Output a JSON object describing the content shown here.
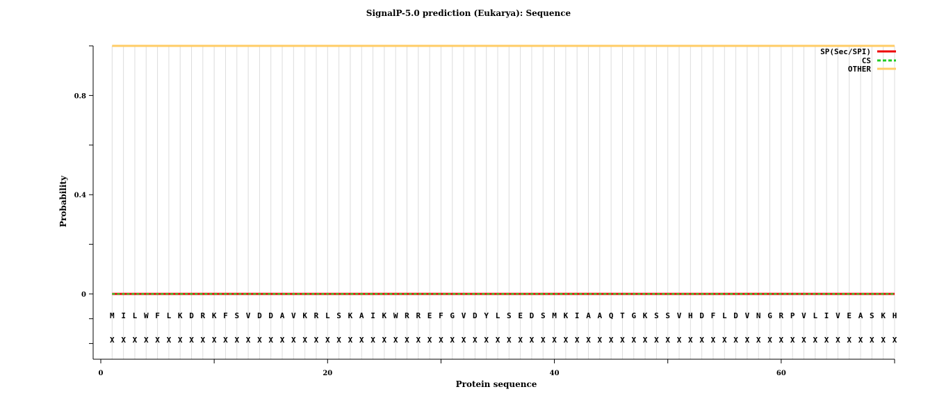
{
  "chart_data": {
    "type": "line",
    "title": "SignalP-5.0 prediction (Eukarya):  Sequence",
    "xlabel": "Protein sequence",
    "ylabel": "Probability",
    "xlim": [
      0,
      70
    ],
    "ylim": [
      0,
      1
    ],
    "x_ticks": [
      0,
      20,
      40,
      60
    ],
    "x_tick_labels": [
      "0",
      "20",
      "40",
      "60"
    ],
    "y_ticks": [
      0,
      0.4,
      0.8
    ],
    "y_tick_labels": [
      "0",
      "0.4",
      "0.8"
    ],
    "grid": "vertical, one line per residue",
    "legend_position": "top-right",
    "sequence": [
      "M",
      "I",
      "L",
      "W",
      "F",
      "L",
      "K",
      "D",
      "R",
      "K",
      "F",
      "S",
      "V",
      "D",
      "D",
      "A",
      "V",
      "K",
      "R",
      "L",
      "S",
      "K",
      "A",
      "I",
      "K",
      "W",
      "R",
      "R",
      "E",
      "F",
      "G",
      "V",
      "D",
      "Y",
      "L",
      "S",
      "E",
      "D",
      "S",
      "M",
      "K",
      "I",
      "A",
      "A",
      "Q",
      "T",
      "G",
      "K",
      "S",
      "S",
      "V",
      "H",
      "D",
      "F",
      "L",
      "D",
      "V",
      "N",
      "G",
      "R",
      "P",
      "V",
      "L",
      "I",
      "V",
      "E",
      "A",
      "S",
      "K",
      "H"
    ],
    "annotation_symbol": "X",
    "series": [
      {
        "name": "SP(Sec/SPI)",
        "color": "#ee0000",
        "style": "solid",
        "value_all_positions": 0.0
      },
      {
        "name": "CS",
        "color": "#22cc22",
        "style": "dashed",
        "value_all_positions": 0.0
      },
      {
        "name": "OTHER",
        "color": "#ffcc66",
        "style": "solid",
        "value_all_positions": 1.0
      }
    ]
  }
}
